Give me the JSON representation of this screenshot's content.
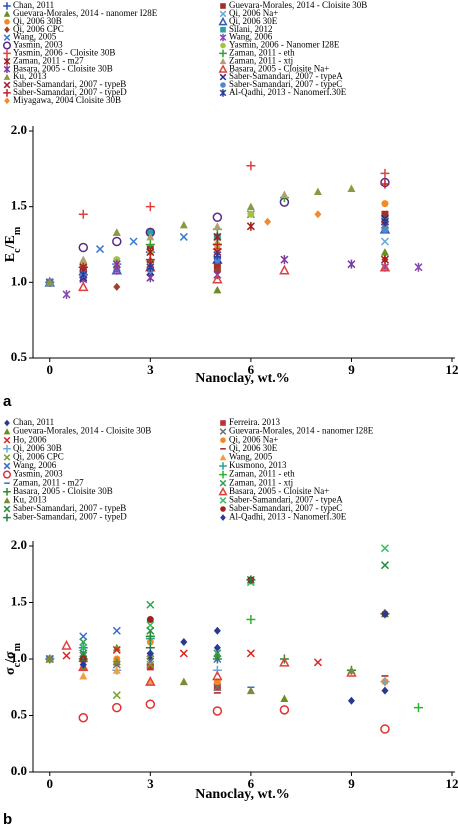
{
  "chart_data": [
    {
      "type": "scatter",
      "panel_label": "a",
      "xlabel": "Nanoclay, wt.%",
      "ylabel": [
        "E",
        "c",
        "/E",
        "m"
      ],
      "xlim": [
        -0.5,
        12
      ],
      "xticks": [
        0,
        3,
        6,
        9,
        12
      ],
      "ylim": [
        0.5,
        2.0
      ],
      "yticks": [
        {
          "value": 0.5,
          "label": "0.5"
        },
        {
          "value": 1.0,
          "label": "1.0"
        },
        {
          "value": 1.5,
          "label": "1.5"
        },
        {
          "value": 2.0,
          "label": "2.0"
        }
      ],
      "series": [
        {
          "name": "Chan, 2011",
          "marker": "plus",
          "color": "#1f4fbf",
          "x": [
            0,
            1,
            2,
            3,
            5
          ],
          "values": [
            1,
            1.05,
            1.12,
            1.2,
            1.25
          ]
        },
        {
          "name": "Guevara-Morales, 2014 - Cloisite  30B",
          "marker": "square",
          "color": "#a0302a",
          "x": [
            0,
            1,
            3,
            5,
            10
          ],
          "values": [
            1,
            1.1,
            1.22,
            1.1,
            1.45
          ]
        },
        {
          "name": "Guevara-Morales, 2014 - nanomer I28E",
          "marker": "triangle",
          "color": "#6b8e23",
          "x": [
            0,
            1,
            3,
            5,
            10
          ],
          "values": [
            1,
            1.05,
            1.15,
            0.95,
            1.2
          ]
        },
        {
          "name": "Qi, 2006 Na+",
          "marker": "x",
          "color": "#5fa8d8",
          "x": [
            0,
            2,
            5,
            10
          ],
          "values": [
            1,
            1.1,
            1.2,
            1.27
          ]
        },
        {
          "name": "Qi, 2006 30B",
          "marker": "circle",
          "color": "#f08a24",
          "x": [
            0,
            1,
            2,
            5,
            10
          ],
          "values": [
            1,
            1.05,
            1.1,
            1.22,
            1.52
          ]
        },
        {
          "name": "Qi, 2006 30E",
          "marker": "triangle-open",
          "color": "#3060b0",
          "x": [
            0,
            2,
            5,
            10
          ],
          "values": [
            1,
            1.08,
            1.15,
            1.35
          ]
        },
        {
          "name": "Qi, 2006 CPC",
          "marker": "diamond",
          "color": "#a0402a",
          "x": [
            0,
            1,
            2,
            3,
            5,
            10
          ],
          "values": [
            1,
            1.02,
            0.97,
            1.05,
            1.08,
            1.15
          ]
        },
        {
          "name": "Silani, 2012",
          "marker": "square",
          "color": "#2aa0a0",
          "x": [
            0,
            3,
            5,
            10
          ],
          "values": [
            1,
            1.33,
            1.3,
            1.4
          ]
        },
        {
          "name": "Wang, 2005",
          "marker": "x",
          "color": "#3a7ad0",
          "x": [
            0,
            1.5,
            2.5,
            4,
            6
          ],
          "values": [
            1,
            1.22,
            1.27,
            1.3,
            1.45
          ]
        },
        {
          "name": "Wang, 2006",
          "marker": "asterisk",
          "color": "#8a4ab0",
          "x": [
            0,
            0.5,
            1,
            2,
            10,
            11
          ],
          "values": [
            1,
            0.92,
            1.02,
            1.08,
            1.1,
            1.1
          ]
        },
        {
          "name": "Yasmin, 2003",
          "marker": "circle-open",
          "color": "#5a2a8a",
          "x": [
            1,
            2,
            3,
            5,
            7,
            10
          ],
          "values": [
            1.23,
            1.27,
            1.33,
            1.43,
            1.53,
            1.66
          ]
        },
        {
          "name": "Yasmin, 2006 - Nanomer I28E",
          "marker": "circle",
          "color": "#a8c040",
          "x": [
            1,
            2,
            3,
            5,
            6
          ],
          "values": [
            1.12,
            1.15,
            1.2,
            1.25,
            1.45
          ]
        },
        {
          "name": "Yasmin, 2006 - Cloisite 30B",
          "marker": "plus",
          "color": "#e04040",
          "x": [
            1,
            3,
            5,
            6,
            10
          ],
          "values": [
            1.45,
            1.5,
            1.22,
            1.77,
            1.72
          ]
        },
        {
          "name": "Zaman, 2011 - eth",
          "marker": "plus",
          "color": "#30a030",
          "x": [
            1,
            3,
            5,
            7
          ],
          "values": [
            1.1,
            1.25,
            1.35,
            1.56
          ]
        },
        {
          "name": "Zaman, 2011 - m27",
          "marker": "asterisk",
          "color": "#a02020",
          "x": [
            1,
            3,
            5,
            6,
            10
          ],
          "values": [
            1.1,
            1.2,
            1.3,
            1.37,
            1.15
          ]
        },
        {
          "name": "Zaman, 2011 - xtj",
          "marker": "triangle",
          "color": "#b0a070",
          "x": [
            1,
            2,
            3,
            5,
            7
          ],
          "values": [
            1.15,
            1.33,
            1.3,
            1.37,
            1.58
          ]
        },
        {
          "name": "Basara, 2005 - Cloisite 30B",
          "marker": "asterisk",
          "color": "#7a3aa0",
          "x": [
            1,
            2,
            3,
            5,
            7,
            9
          ],
          "values": [
            1.05,
            1.12,
            1.03,
            1.05,
            1.15,
            1.12
          ]
        },
        {
          "name": "Basara, 2005 - Cloisite Na+",
          "marker": "triangle-open",
          "color": "#e04040",
          "x": [
            1,
            3,
            5,
            7,
            10
          ],
          "values": [
            0.97,
            1.1,
            1.02,
            1.08,
            1.1
          ]
        },
        {
          "name": "Ku, 2013",
          "marker": "triangle",
          "color": "#8a9a40",
          "x": [
            0,
            2,
            4,
            6,
            8,
            9
          ],
          "values": [
            1,
            1.33,
            1.38,
            1.5,
            1.6,
            1.62
          ]
        },
        {
          "name": "Saber-Samandari, 2007 - typeA",
          "marker": "x",
          "color": "#2a2a8a",
          "x": [
            1,
            3,
            5,
            10
          ],
          "values": [
            1.03,
            1.07,
            1.15,
            1.42
          ]
        },
        {
          "name": "Saber-Samandari, 2007 - typeB",
          "marker": "x",
          "color": "#a02030",
          "x": [
            1,
            3,
            5,
            10
          ],
          "values": [
            1.08,
            1.12,
            1.2,
            1.38
          ]
        },
        {
          "name": "Saber-Samandari, 2007 - typeC",
          "marker": "circle",
          "color": "#4a8ad0",
          "x": [
            1,
            3,
            5,
            10
          ],
          "values": [
            1.05,
            1.08,
            1.15,
            1.35
          ]
        },
        {
          "name": "Saber-Samandari, 2007 - typeD",
          "marker": "plus",
          "color": "#c02020",
          "x": [
            1,
            3,
            5,
            10
          ],
          "values": [
            1.1,
            1.15,
            1.25,
            1.65
          ]
        },
        {
          "name": "Al-Qadhi, 2013 - NanomerI.30E",
          "marker": "asterisk",
          "color": "#2a3a9a",
          "x": [
            1,
            3,
            5,
            10
          ],
          "values": [
            1.05,
            1.1,
            1.18,
            1.4
          ]
        },
        {
          "name": "Miyagawa, 2004 Cloisite 30B",
          "marker": "diamond",
          "color": "#f08a30",
          "x": [
            6.5,
            8
          ],
          "values": [
            1.4,
            1.45
          ]
        }
      ]
    },
    {
      "type": "scatter",
      "panel_label": "b",
      "xlabel": "Nanoclay, wt.%",
      "ylabel": [
        "σ",
        "c",
        "/σ",
        "m"
      ],
      "xlim": [
        -0.5,
        12
      ],
      "xticks": [
        0,
        3,
        6,
        9,
        12
      ],
      "ylim": [
        0,
        2.0
      ],
      "yticks": [
        {
          "value": 0,
          "label": "0.0"
        },
        {
          "value": 0.5,
          "label": "0.5"
        },
        {
          "value": 1.0,
          "label": "1.0"
        },
        {
          "value": 1.5,
          "label": "1.5"
        },
        {
          "value": 2.0,
          "label": "2.0"
        }
      ],
      "series": [
        {
          "name": "Chan, 2011",
          "marker": "diamond",
          "color": "#2a3a8a",
          "x": [
            0,
            1,
            2,
            3,
            4,
            5,
            9,
            10
          ],
          "values": [
            1,
            0.95,
            0.98,
            1.0,
            1.15,
            1.25,
            0.63,
            0.72
          ]
        },
        {
          "name": "Ferreira. 2013",
          "marker": "square",
          "color": "#c03030",
          "x": [
            0,
            1,
            3,
            5
          ],
          "values": [
            1,
            1,
            0.93,
            0.75
          ]
        },
        {
          "name": "Guevara-Morales, 2014 - Cloisite  30B",
          "marker": "triangle",
          "color": "#6b8e23",
          "x": [
            0,
            1,
            2,
            3,
            5,
            7,
            10
          ],
          "values": [
            1,
            0.93,
            1.1,
            1.05,
            1.05,
            0.65,
            1.4
          ]
        },
        {
          "name": "Guevara-Morales, 2014 - nanomer I28E",
          "marker": "x",
          "color": "#707070",
          "x": [
            0,
            1,
            2,
            3,
            5
          ],
          "values": [
            1,
            1.03,
            0.95,
            0.98,
            0.75
          ]
        },
        {
          "name": "Ho, 2006",
          "marker": "x",
          "color": "#e02020",
          "x": [
            0,
            0.5,
            2,
            4,
            6,
            8
          ],
          "values": [
            1,
            1.03,
            1.08,
            1.05,
            1.05,
            0.97
          ]
        },
        {
          "name": "Qi, 2006 Na+",
          "marker": "circle",
          "color": "#f08a24",
          "x": [
            0,
            2,
            3,
            5,
            10
          ],
          "values": [
            1,
            1,
            1.15,
            0.8,
            0.8
          ]
        },
        {
          "name": "Qi, 2006 30B",
          "marker": "plus",
          "color": "#6aa8d8",
          "x": [
            0,
            2,
            5,
            10
          ],
          "values": [
            1,
            0.9,
            0.9,
            0.8
          ]
        },
        {
          "name": "Qi, 2006 30E",
          "marker": "dash",
          "color": "#a02020",
          "x": [
            0,
            2,
            5,
            10
          ],
          "values": [
            1,
            0.95,
            0.7,
            0.85
          ]
        },
        {
          "name": "Qi, 2006 CPC",
          "marker": "x",
          "color": "#7aa030",
          "x": [
            0,
            2,
            3
          ],
          "values": [
            1,
            0.68,
            0.95
          ]
        },
        {
          "name": "Wang, 2005",
          "marker": "triangle",
          "color": "#f0a040",
          "x": [
            0,
            1,
            2,
            3,
            4
          ],
          "values": [
            1,
            0.85,
            0.9,
            0.8,
            0.8
          ]
        },
        {
          "name": "Wang, 2006",
          "marker": "x",
          "color": "#3a6ad0",
          "x": [
            0,
            1,
            2,
            5
          ],
          "values": [
            1,
            1.2,
            1.25,
            1.0
          ]
        },
        {
          "name": "Kusmono, 2013",
          "marker": "plus",
          "color": "#2aa0a0",
          "x": [
            0,
            1,
            3
          ],
          "values": [
            1,
            1.1,
            1.18
          ]
        },
        {
          "name": "Yasmin, 2003",
          "marker": "circle-open",
          "color": "#e03030",
          "x": [
            1,
            2,
            3,
            5,
            7,
            10
          ],
          "values": [
            0.48,
            0.57,
            0.6,
            0.54,
            0.55,
            0.38
          ]
        },
        {
          "name": "Zaman, 2011 - eth",
          "marker": "plus",
          "color": "#30b030",
          "x": [
            3,
            6,
            11
          ],
          "values": [
            1.2,
            1.35,
            0.57
          ]
        },
        {
          "name": "Zaman, 2011 - m27",
          "marker": "dash",
          "color": "#3a6ad0",
          "x": [
            1,
            3,
            6
          ],
          "values": [
            1.1,
            1.05,
            0.75
          ]
        },
        {
          "name": "Zaman, 2011 - xtj",
          "marker": "x",
          "color": "#30a050",
          "x": [
            1,
            3,
            5
          ],
          "values": [
            1.15,
            1.48,
            1.05
          ]
        },
        {
          "name": "Basara, 2005 - Cloisite 30B",
          "marker": "plus",
          "color": "#2a8a2a",
          "x": [
            1,
            3,
            5,
            7,
            9
          ],
          "values": [
            1.0,
            1.2,
            1.0,
            1.0,
            0.9
          ]
        },
        {
          "name": "Basara, 2005 - Cloisite Na+",
          "marker": "triangle-open",
          "color": "#e04040",
          "x": [
            0.5,
            1,
            3,
            5,
            7,
            9
          ],
          "values": [
            1.12,
            0.93,
            0.8,
            0.85,
            0.97,
            0.88
          ]
        },
        {
          "name": "Ku, 2013",
          "marker": "triangle",
          "color": "#7a8a3a",
          "x": [
            0,
            2,
            4,
            6,
            9
          ],
          "values": [
            1,
            0.98,
            0.8,
            0.72,
            0.9
          ]
        },
        {
          "name": "Saber-Samandari, 2007 - typeA",
          "marker": "x",
          "color": "#30c060",
          "x": [
            1,
            3,
            6,
            10
          ],
          "values": [
            1.1,
            1.3,
            1.68,
            1.98
          ]
        },
        {
          "name": "Saber-Samandari, 2007 - typeB",
          "marker": "x",
          "color": "#209040",
          "x": [
            1,
            3,
            6,
            10
          ],
          "values": [
            1.05,
            1.25,
            1.7,
            1.83
          ]
        },
        {
          "name": "Saber-Samandari, 2007 - typeC",
          "marker": "circle",
          "color": "#a02020",
          "x": [
            1,
            3,
            6,
            10
          ],
          "values": [
            1.0,
            1.35,
            1.7,
            1.4
          ]
        },
        {
          "name": "Saber-Samandari, 2007 - typeD",
          "marker": "plus",
          "color": "#208040",
          "x": [
            1,
            3,
            6,
            10
          ],
          "values": [
            0.98,
            1.1,
            1.7,
            1.4
          ]
        },
        {
          "name": "Al-Qadhi, 2013 - NanomerI.30E",
          "marker": "diamond",
          "color": "#2a3a9a",
          "x": [
            1,
            3,
            5,
            10
          ],
          "values": [
            0.95,
            1.05,
            1.1,
            1.4
          ]
        }
      ]
    }
  ]
}
